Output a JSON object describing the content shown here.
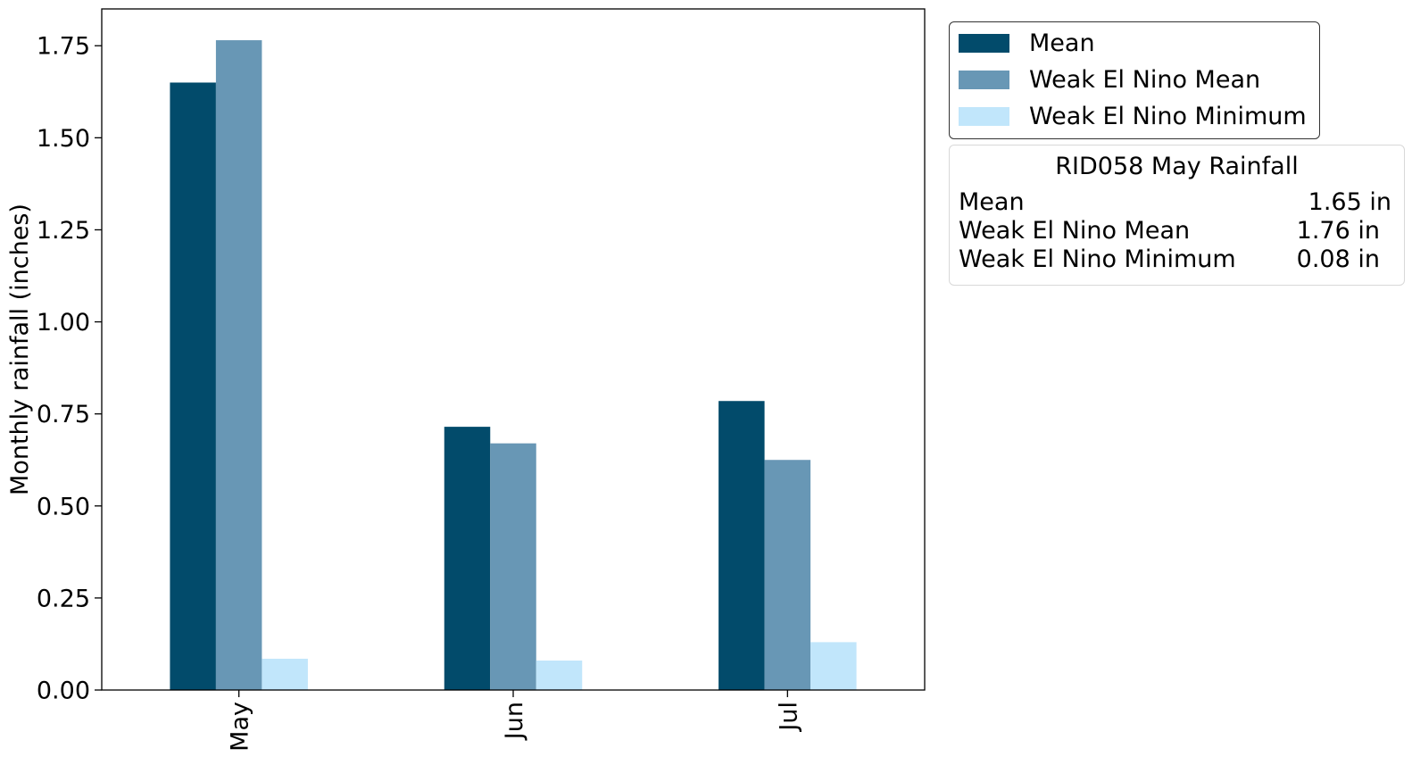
{
  "chart_data": {
    "type": "bar",
    "title": "",
    "xlabel": "",
    "ylabel": "Monthly rainfall (inches)",
    "categories": [
      "May",
      "Jun",
      "Jul"
    ],
    "ylim": [
      0,
      1.85
    ],
    "yticks": [
      0.0,
      0.25,
      0.5,
      0.75,
      1.0,
      1.25,
      1.5,
      1.75
    ],
    "ytick_labels": [
      "0.00",
      "0.25",
      "0.50",
      "0.75",
      "1.00",
      "1.25",
      "1.50",
      "1.75"
    ],
    "grid": false,
    "legend_position": "outside-top-right",
    "series": [
      {
        "name": "Mean",
        "color": "#024b6b",
        "values": [
          1.65,
          0.715,
          0.785
        ]
      },
      {
        "name": "Weak El Nino Mean",
        "color": "#6897b5",
        "values": [
          1.765,
          0.67,
          0.625
        ]
      },
      {
        "name": "Weak El Nino Minimum",
        "color": "#c1e6fb",
        "values": [
          0.085,
          0.08,
          0.13
        ]
      }
    ]
  },
  "stats_box": {
    "title": "RID058 May Rainfall",
    "rows": [
      {
        "label": "Mean",
        "value": "1.65 in"
      },
      {
        "label": "Weak El Nino Mean",
        "value": "1.76 in"
      },
      {
        "label": "Weak El Nino Minimum",
        "value": "0.08 in"
      }
    ]
  }
}
